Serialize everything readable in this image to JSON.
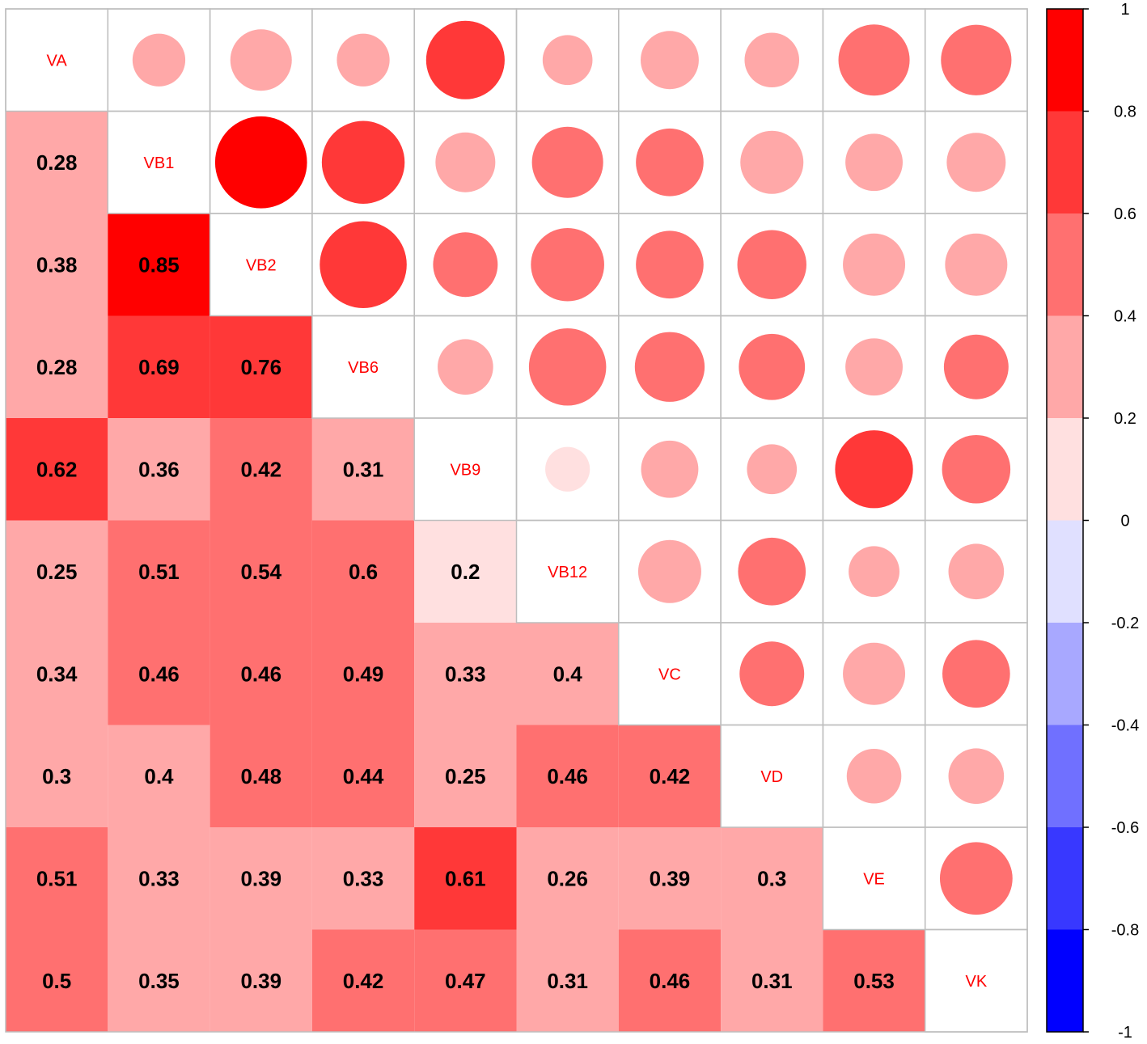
{
  "chart_data": {
    "type": "heatmap",
    "variables": [
      "VA",
      "VB1",
      "VB2",
      "VB6",
      "VB9",
      "VB12",
      "VC",
      "VD",
      "VE",
      "VK"
    ],
    "matrix": [
      [
        1,
        0.28,
        0.38,
        0.28,
        0.62,
        0.25,
        0.34,
        0.3,
        0.51,
        0.5
      ],
      [
        0.28,
        1,
        0.85,
        0.69,
        0.36,
        0.51,
        0.46,
        0.4,
        0.33,
        0.35
      ],
      [
        0.38,
        0.85,
        1,
        0.76,
        0.42,
        0.54,
        0.46,
        0.48,
        0.39,
        0.39
      ],
      [
        0.28,
        0.69,
        0.76,
        1,
        0.31,
        0.6,
        0.49,
        0.44,
        0.33,
        0.42
      ],
      [
        0.62,
        0.36,
        0.42,
        0.31,
        1,
        0.2,
        0.33,
        0.25,
        0.61,
        0.47
      ],
      [
        0.25,
        0.51,
        0.54,
        0.6,
        0.2,
        1,
        0.4,
        0.46,
        0.26,
        0.31
      ],
      [
        0.34,
        0.46,
        0.46,
        0.49,
        0.33,
        0.4,
        1,
        0.42,
        0.39,
        0.46
      ],
      [
        0.3,
        0.4,
        0.48,
        0.44,
        0.25,
        0.46,
        0.42,
        1,
        0.3,
        0.31
      ],
      [
        0.51,
        0.33,
        0.39,
        0.33,
        0.61,
        0.26,
        0.39,
        0.3,
        1,
        0.53
      ],
      [
        0.5,
        0.35,
        0.39,
        0.42,
        0.47,
        0.31,
        0.46,
        0.31,
        0.53,
        1
      ]
    ],
    "lower_method": "number-colored-square",
    "upper_method": "circle",
    "diagonal": "variable-labels",
    "color_scale": {
      "range": [
        -1,
        1
      ],
      "ticks": [
        "1",
        "0.8",
        "0.6",
        "0.4",
        "0.2",
        "0",
        "-0.2",
        "-0.4",
        "-0.6",
        "-0.8",
        "-1"
      ],
      "bins": [
        {
          "from": 0.8,
          "to": 1.0,
          "color": "#ff0000"
        },
        {
          "from": 0.6,
          "to": 0.8,
          "color": "#ff3838"
        },
        {
          "from": 0.4,
          "to": 0.6,
          "color": "#ff7070"
        },
        {
          "from": 0.2,
          "to": 0.4,
          "color": "#ffa8a8"
        },
        {
          "from": 0.0,
          "to": 0.2,
          "color": "#ffe0e0"
        },
        {
          "from": -0.2,
          "to": 0.0,
          "color": "#e0e0ff"
        },
        {
          "from": -0.4,
          "to": -0.2,
          "color": "#a8a8ff"
        },
        {
          "from": -0.6,
          "to": -0.4,
          "color": "#7070ff"
        },
        {
          "from": -0.8,
          "to": -0.6,
          "color": "#3838ff"
        },
        {
          "from": -1.0,
          "to": -0.8,
          "color": "#0000ff"
        }
      ]
    },
    "label_color": "#ff0000",
    "grid_color": "#bebebe",
    "legend_placement": "right",
    "title": "",
    "xlabel": "",
    "ylabel": ""
  }
}
